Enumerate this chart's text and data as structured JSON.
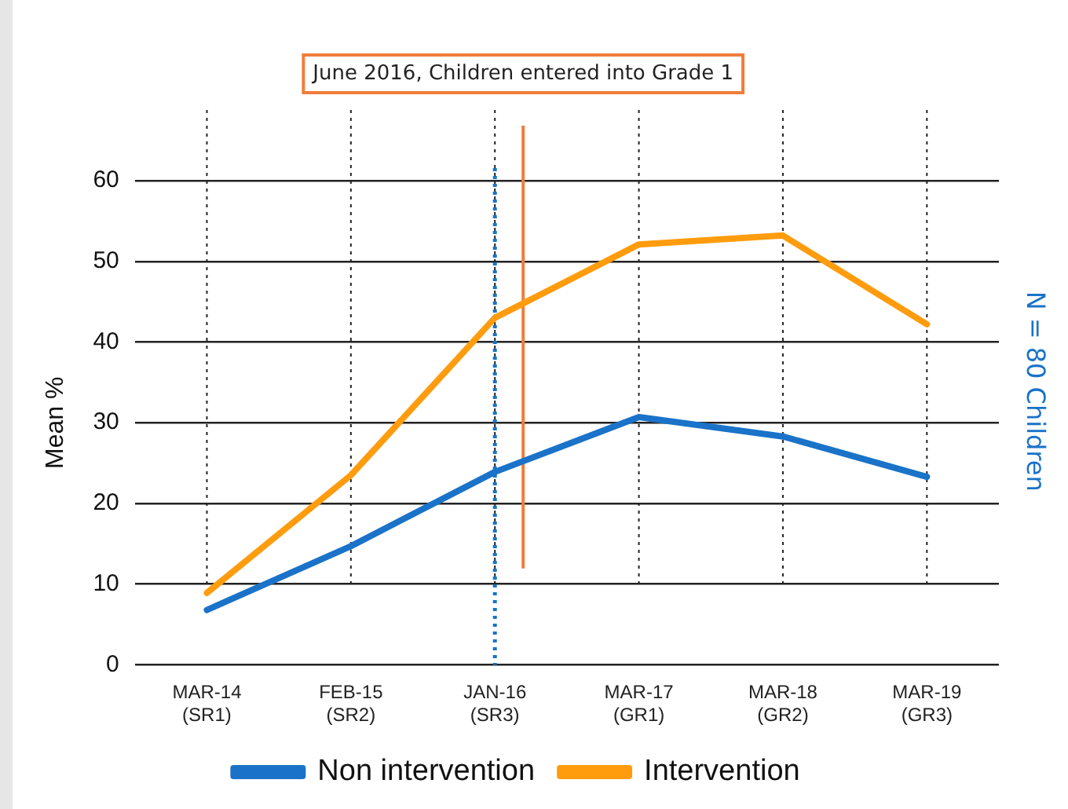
{
  "chart_data": {
    "type": "line",
    "ylabel": "Mean %",
    "categories": [
      "MAR-14\n(SR1)",
      "FEB-15\n(SR2)",
      "JAN-16\n(SR3)",
      "MAR-17\n(GR1)",
      "MAR-18\n(GR2)",
      "MAR-19\n(GR3)"
    ],
    "series": [
      {
        "name": "Non intervention",
        "color": "#1a73c8",
        "values": [
          6.8,
          14.7,
          23.9,
          30.7,
          28.3,
          23.3
        ]
      },
      {
        "name": "Intervention",
        "color": "#ff9c0e",
        "values": [
          8.9,
          23.5,
          43.0,
          52.1,
          53.2,
          42.2
        ]
      }
    ],
    "ylim": [
      0,
      60
    ],
    "yticks": [
      0,
      10,
      20,
      30,
      40,
      50,
      60
    ],
    "grid": true,
    "legend": "bottom",
    "marker": "none",
    "line_style": "solid",
    "ref_lines": [
      {
        "axis": "x",
        "value": "JAN-16\n(SR3)",
        "color": "#1a73c8",
        "line_style": "dotted"
      },
      {
        "axis": "x",
        "value": "JAN-16\n(SR3)",
        "label": "June 2016, Children entered into Grade 1",
        "color": "#f07d3a",
        "line_style": "solid"
      }
    ],
    "annotations": [
      "N = 80 Children"
    ]
  }
}
